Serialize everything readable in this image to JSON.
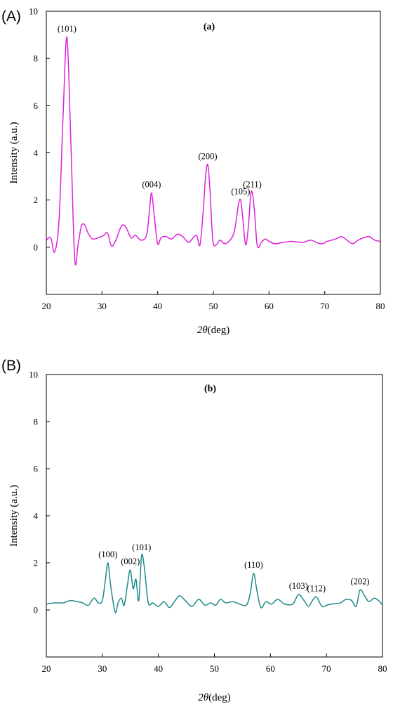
{
  "chart_data": [
    {
      "type": "line",
      "panel_letter": "(A)",
      "title": "(a)",
      "xlabel_symbol": "2θ",
      "xlabel_unit": "(deg)",
      "ylabel": "Intensity (a.u.)",
      "xlim": [
        20,
        80
      ],
      "ylim": [
        -2,
        10
      ],
      "xticks": [
        20,
        30,
        40,
        50,
        60,
        70,
        80
      ],
      "yticks": [
        0,
        2,
        4,
        6,
        8,
        10
      ],
      "grid": false,
      "color": "#dd22dd",
      "series": [
        {
          "x": [
            20,
            20.8,
            21.5,
            22.3,
            23.0,
            23.7,
            24.4,
            25.1,
            25.7,
            26.3,
            26.9,
            27.5,
            28.3,
            29.3,
            30.3,
            31.0,
            31.7,
            32.5,
            33.5,
            34.3,
            35.2,
            36.0,
            37.0,
            38.0,
            38.5,
            38.9,
            39.4,
            40.0,
            40.6,
            41.5,
            42.5,
            43.5,
            44.5,
            45.5,
            46.2,
            47.0,
            47.6,
            48.2,
            48.6,
            49.0,
            49.4,
            49.9,
            50.5,
            51.2,
            52.0,
            53.0,
            53.8,
            54.5,
            54.9,
            55.3,
            55.8,
            56.3,
            56.7,
            57.0,
            57.4,
            57.9,
            58.6,
            59.3,
            60.0,
            61.0,
            62.5,
            64.0,
            66.0,
            67.5,
            68.5,
            69.5,
            70.5,
            72.0,
            73.0,
            74.0,
            75.0,
            76.0,
            77.0,
            78.0,
            79.0,
            80.0
          ],
          "y": [
            0.3,
            0.4,
            -0.2,
            1.2,
            5.5,
            8.9,
            4.5,
            -0.5,
            0.1,
            0.9,
            0.95,
            0.6,
            0.35,
            0.4,
            0.5,
            0.6,
            0.05,
            0.3,
            0.9,
            0.85,
            0.4,
            0.5,
            0.3,
            0.5,
            1.5,
            2.3,
            1.3,
            0.15,
            0.4,
            0.45,
            0.35,
            0.55,
            0.45,
            0.2,
            0.35,
            0.5,
            0.1,
            1.6,
            3.0,
            3.5,
            2.4,
            0.3,
            0.1,
            0.3,
            0.15,
            0.3,
            0.7,
            1.8,
            2.0,
            1.2,
            0.1,
            0.9,
            2.2,
            2.3,
            1.5,
            0.05,
            0.2,
            0.35,
            0.25,
            0.15,
            0.2,
            0.25,
            0.2,
            0.3,
            0.2,
            0.15,
            0.25,
            0.35,
            0.45,
            0.3,
            0.15,
            0.3,
            0.4,
            0.45,
            0.3,
            0.25
          ]
        }
      ],
      "peaks": [
        {
          "label": "(101)",
          "x": 23.7,
          "y": 8.9
        },
        {
          "label": "(004)",
          "x": 38.9,
          "y": 2.3
        },
        {
          "label": "(200)",
          "x": 49.0,
          "y": 3.5
        },
        {
          "label": "(105)",
          "x": 54.9,
          "y": 2.0
        },
        {
          "label": "(211)",
          "x": 57.0,
          "y": 2.3
        }
      ]
    },
    {
      "type": "line",
      "panel_letter": "(B)",
      "title": "(b)",
      "xlabel_symbol": "2θ",
      "xlabel_unit": "(deg)",
      "ylabel": "Intensity (a.u.)",
      "xlim": [
        20,
        80
      ],
      "ylim": [
        -2,
        10
      ],
      "xticks": [
        20,
        30,
        40,
        50,
        60,
        70,
        80
      ],
      "yticks": [
        0,
        2,
        4,
        6,
        8,
        10
      ],
      "grid": false,
      "color": "#1f8a8a",
      "series": [
        {
          "x": [
            20,
            21.5,
            23,
            24.3,
            25.5,
            26.5,
            27.5,
            28.5,
            29.3,
            30.0,
            30.5,
            31.0,
            31.5,
            32.3,
            32.8,
            33.4,
            33.9,
            34.5,
            35.0,
            35.5,
            36.0,
            36.5,
            37.0,
            37.5,
            38.2,
            39.0,
            40.0,
            41.0,
            42.0,
            43.0,
            43.8,
            44.8,
            46.0,
            47.2,
            48.3,
            49.3,
            50.2,
            51.1,
            52.0,
            53.3,
            54.5,
            55.7,
            56.4,
            57.0,
            57.6,
            58.3,
            59.2,
            60.2,
            61.3,
            62.5,
            64.0,
            65.0,
            66.0,
            66.8,
            67.5,
            68.2,
            69.2,
            70.0,
            71.0,
            72.5,
            73.5,
            74.5,
            75.3,
            76.0,
            76.8,
            77.6,
            78.5,
            79.3,
            80.0
          ],
          "y": [
            0.25,
            0.3,
            0.3,
            0.4,
            0.35,
            0.3,
            0.2,
            0.5,
            0.3,
            0.4,
            1.2,
            2.0,
            1.0,
            -0.1,
            0.3,
            0.5,
            0.2,
            1.1,
            1.7,
            0.9,
            1.3,
            0.4,
            2.3,
            1.8,
            0.3,
            0.3,
            0.15,
            0.35,
            0.1,
            0.4,
            0.6,
            0.4,
            0.15,
            0.45,
            0.2,
            0.3,
            0.2,
            0.45,
            0.3,
            0.35,
            0.25,
            0.2,
            0.7,
            1.55,
            0.8,
            0.1,
            0.35,
            0.25,
            0.45,
            0.25,
            0.25,
            0.65,
            0.4,
            0.15,
            0.4,
            0.55,
            0.15,
            0.2,
            0.25,
            0.3,
            0.45,
            0.4,
            0.15,
            0.85,
            0.6,
            0.35,
            0.5,
            0.4,
            0.2
          ]
        }
      ],
      "peaks": [
        {
          "label": "(100)",
          "x": 31.0,
          "y": 2.0
        },
        {
          "label": "(002)",
          "x": 35.0,
          "y": 1.7
        },
        {
          "label": "(101)",
          "x": 37.0,
          "y": 2.3
        },
        {
          "label": "(110)",
          "x": 57.0,
          "y": 1.55
        },
        {
          "label": "(103)",
          "x": 65.0,
          "y": 0.65
        },
        {
          "label": "(112)",
          "x": 68.2,
          "y": 0.55
        },
        {
          "label": "(202)",
          "x": 76.0,
          "y": 0.85
        }
      ]
    }
  ]
}
